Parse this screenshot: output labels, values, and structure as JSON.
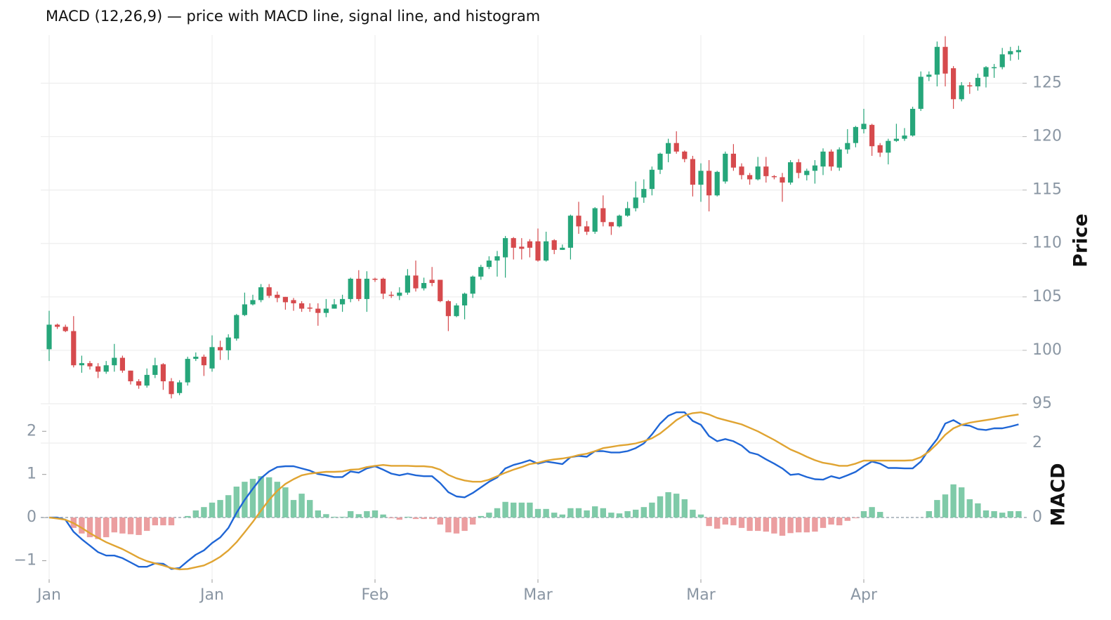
{
  "chart_data": [
    {
      "type": "candlestick",
      "title": "MACD (12,26,9) — price with MACD line, signal line, and histogram",
      "ylabel": "Price",
      "up_color": "#26a67a",
      "down_color": "#d64a4d",
      "grid": true,
      "ylim": [
        95,
        129.5
      ],
      "yticks": [
        95,
        100,
        105,
        110,
        115,
        120,
        125
      ],
      "open": [
        100.1,
        102.4,
        102.2,
        101.8,
        98.6,
        98.8,
        98.5,
        98.0,
        98.6,
        99.3,
        98.1,
        97.1,
        96.7,
        97.7,
        98.7,
        97.1,
        96.0,
        97.0,
        99.2,
        99.4,
        98.3,
        100.3,
        100.0,
        101.1,
        103.3,
        104.3,
        104.7,
        105.9,
        105.2,
        105.0,
        104.7,
        104.4,
        104.0,
        103.9,
        103.5,
        103.9,
        104.3,
        104.8,
        106.7,
        104.8,
        106.7,
        106.7,
        105.2,
        105.1,
        105.4,
        107.0,
        105.8,
        106.6,
        106.6,
        104.6,
        103.2,
        104.2,
        105.3,
        106.9,
        107.8,
        108.4,
        108.7,
        110.5,
        109.7,
        110.2,
        110.2,
        108.4,
        110.3,
        109.4,
        109.6,
        112.6,
        111.6,
        111.1,
        113.3,
        112.0,
        111.6,
        112.6,
        113.3,
        114.3,
        115.1,
        116.9,
        118.4,
        119.4,
        118.6,
        117.9,
        115.5,
        116.8,
        114.5,
        115.8,
        118.4,
        117.2,
        116.4,
        116.0,
        117.2,
        116.3,
        116.2,
        115.7,
        117.6,
        116.4,
        116.8,
        117.2,
        118.6,
        117.1,
        118.8,
        119.4,
        120.7,
        121.1,
        119.2,
        118.5,
        119.6,
        119.8,
        120.1,
        122.6,
        125.6,
        125.8,
        128.4,
        126.4,
        123.5,
        124.8,
        124.7,
        125.6,
        126.4,
        126.5,
        127.7,
        127.9
      ],
      "high": [
        103.7,
        102.5,
        102.4,
        103.2,
        99.5,
        99.0,
        98.8,
        99.0,
        100.6,
        99.5,
        98.1,
        97.3,
        98.3,
        99.3,
        98.8,
        97.4,
        97.2,
        99.4,
        99.8,
        99.6,
        101.4,
        100.9,
        101.5,
        103.4,
        105.4,
        105.2,
        106.2,
        106.2,
        105.5,
        105.0,
        104.9,
        104.6,
        104.4,
        104.4,
        104.8,
        104.8,
        105.2,
        106.8,
        107.5,
        107.4,
        106.8,
        106.8,
        105.5,
        105.9,
        107.6,
        108.4,
        106.8,
        107.8,
        106.6,
        104.7,
        104.4,
        105.4,
        107.0,
        108.0,
        108.8,
        109.3,
        110.7,
        110.6,
        110.5,
        110.4,
        111.4,
        111.1,
        110.4,
        109.9,
        112.7,
        113.9,
        112.1,
        113.4,
        114.5,
        112.0,
        112.7,
        113.9,
        115.8,
        116.0,
        117.2,
        118.5,
        119.8,
        120.5,
        118.7,
        118.2,
        117.5,
        117.8,
        116.8,
        118.6,
        119.3,
        117.5,
        116.6,
        118.1,
        118.1,
        116.4,
        116.6,
        117.8,
        117.9,
        117.0,
        117.8,
        118.9,
        118.8,
        119.0,
        120.7,
        121.0,
        122.6,
        121.2,
        119.4,
        119.8,
        121.2,
        120.8,
        122.8,
        126.1,
        126.1,
        128.9,
        129.4,
        126.6,
        125.1,
        125.1,
        125.9,
        126.6,
        126.8,
        128.3,
        128.4,
        128.5
      ],
      "low": [
        99.0,
        102.0,
        101.7,
        98.4,
        97.9,
        98.2,
        97.4,
        97.8,
        98.0,
        97.9,
        96.8,
        96.4,
        96.5,
        97.4,
        96.3,
        95.5,
        95.8,
        96.7,
        99.0,
        97.6,
        98.0,
        99.1,
        99.1,
        100.9,
        103.2,
        104.2,
        104.5,
        104.9,
        104.5,
        103.8,
        103.7,
        103.6,
        103.6,
        102.3,
        103.1,
        103.9,
        103.6,
        104.5,
        104.6,
        103.6,
        106.4,
        104.8,
        104.9,
        104.7,
        105.2,
        105.5,
        105.6,
        106.0,
        104.5,
        101.8,
        103.1,
        102.9,
        104.9,
        106.6,
        107.6,
        106.9,
        106.8,
        108.5,
        108.5,
        108.7,
        108.3,
        108.3,
        109.0,
        109.4,
        108.5,
        110.9,
        110.8,
        110.9,
        111.6,
        110.8,
        111.5,
        112.5,
        113.0,
        113.8,
        114.5,
        116.5,
        117.6,
        118.4,
        117.6,
        114.4,
        113.9,
        113.0,
        114.4,
        115.6,
        116.8,
        116.0,
        115.5,
        115.9,
        115.7,
        116.0,
        113.9,
        115.5,
        116.1,
        115.9,
        115.6,
        116.4,
        116.8,
        116.8,
        118.4,
        119.0,
        120.3,
        118.2,
        118.1,
        117.4,
        119.5,
        119.6,
        120.0,
        122.4,
        125.2,
        124.7,
        124.7,
        122.6,
        123.3,
        124.0,
        124.3,
        124.6,
        125.5,
        126.3,
        127.1,
        127.2
      ],
      "close": [
        102.4,
        102.2,
        101.8,
        98.6,
        98.8,
        98.5,
        98.0,
        98.6,
        99.3,
        98.1,
        97.1,
        96.7,
        97.7,
        98.6,
        97.1,
        95.9,
        97.0,
        99.2,
        99.4,
        98.6,
        100.3,
        100.0,
        101.2,
        103.3,
        104.3,
        104.7,
        105.9,
        105.1,
        104.9,
        104.5,
        104.4,
        103.9,
        103.9,
        103.5,
        103.9,
        104.3,
        104.8,
        106.7,
        104.8,
        106.7,
        106.6,
        105.3,
        105.1,
        105.4,
        107.0,
        105.8,
        106.3,
        106.3,
        104.6,
        103.2,
        104.2,
        105.3,
        106.9,
        107.8,
        108.4,
        108.8,
        110.5,
        109.6,
        109.5,
        109.6,
        108.4,
        110.2,
        109.4,
        109.6,
        112.6,
        111.6,
        111.1,
        113.3,
        112.0,
        111.6,
        112.6,
        113.3,
        114.3,
        115.1,
        116.9,
        118.4,
        119.4,
        118.6,
        117.9,
        115.5,
        116.8,
        114.5,
        116.7,
        118.4,
        117.1,
        116.4,
        116.0,
        117.2,
        116.3,
        116.2,
        115.7,
        117.6,
        116.6,
        116.8,
        117.3,
        118.6,
        117.2,
        118.8,
        119.4,
        120.9,
        121.2,
        119.1,
        118.5,
        119.6,
        119.8,
        120.1,
        122.6,
        125.6,
        125.8,
        128.4,
        125.9,
        123.5,
        124.8,
        124.7,
        125.5,
        126.5,
        126.5,
        127.7,
        128.0,
        128.1
      ]
    },
    {
      "type": "macd",
      "ylabel": "MACD",
      "grid": true,
      "categories": [
        "Jan",
        null,
        null,
        null,
        null,
        null,
        null,
        null,
        null,
        null,
        null,
        null,
        null,
        null,
        null,
        null,
        null,
        null,
        null,
        null,
        "Jan",
        null,
        null,
        null,
        null,
        null,
        null,
        null,
        null,
        null,
        null,
        null,
        null,
        null,
        null,
        null,
        null,
        null,
        null,
        null,
        "Feb",
        null,
        null,
        null,
        null,
        null,
        null,
        null,
        null,
        null,
        null,
        null,
        null,
        null,
        null,
        null,
        null,
        null,
        null,
        null,
        "Mar",
        null,
        null,
        null,
        null,
        null,
        null,
        null,
        null,
        null,
        null,
        null,
        null,
        null,
        null,
        null,
        null,
        null,
        null,
        null,
        "Mar",
        null,
        null,
        null,
        null,
        null,
        null,
        null,
        null,
        null,
        null,
        null,
        null,
        null,
        null,
        null,
        null,
        null,
        null,
        null,
        "Apr",
        null,
        null,
        null,
        null,
        null,
        null,
        null,
        null,
        null,
        null,
        null,
        null,
        null,
        null,
        null,
        null,
        null,
        null,
        null
      ],
      "ylim": [
        -1.43,
        2.59
      ],
      "yticks": [
        {
          "value": -1,
          "label": "−1"
        },
        0,
        1,
        2
      ],
      "y2lim": [
        -1.66,
        3.0
      ],
      "y2ticks": [
        0,
        2
      ],
      "series": [
        {
          "type": "bar",
          "axis": "y2",
          "color": "#7fcaa8",
          "negative_color": "#eb9ea0",
          "values": [
            0,
            0,
            0,
            -0.28,
            -0.43,
            -0.53,
            -0.58,
            -0.53,
            -0.4,
            -0.43,
            -0.45,
            -0.47,
            -0.36,
            -0.21,
            -0.21,
            -0.21,
            0,
            0.04,
            0.19,
            0.28,
            0.4,
            0.47,
            0.6,
            0.83,
            0.96,
            1.04,
            1.11,
            1.08,
            0.96,
            0.81,
            0.47,
            0.64,
            0.47,
            0.19,
            0.09,
            0.02,
            0.02,
            0.17,
            0.09,
            0.17,
            0.19,
            0.08,
            -0.02,
            -0.06,
            0.02,
            -0.04,
            -0.04,
            -0.04,
            -0.19,
            -0.4,
            -0.43,
            -0.36,
            -0.19,
            0.04,
            0.13,
            0.25,
            0.42,
            0.4,
            0.4,
            0.4,
            0.23,
            0.23,
            0.13,
            0.08,
            0.25,
            0.25,
            0.19,
            0.3,
            0.25,
            0.13,
            0.11,
            0.17,
            0.21,
            0.28,
            0.4,
            0.57,
            0.68,
            0.64,
            0.49,
            0.21,
            0.08,
            -0.23,
            -0.3,
            -0.19,
            -0.21,
            -0.28,
            -0.36,
            -0.36,
            -0.38,
            -0.43,
            -0.49,
            -0.42,
            -0.4,
            -0.4,
            -0.38,
            -0.28,
            -0.19,
            -0.21,
            -0.09,
            -0.02,
            0.17,
            0.28,
            0.15,
            0,
            0,
            0,
            0,
            0,
            0.17,
            0.47,
            0.62,
            0.89,
            0.81,
            0.49,
            0.38,
            0.19,
            0.17,
            0.13,
            0.17,
            0.17
          ]
        },
        {
          "type": "line",
          "color": "#1f66d6",
          "values": [
            0,
            0,
            -0.05,
            -0.33,
            -0.5,
            -0.65,
            -0.8,
            -0.88,
            -0.88,
            -0.94,
            -1.04,
            -1.14,
            -1.14,
            -1.06,
            -1.07,
            -1.19,
            -1.17,
            -1.01,
            -0.86,
            -0.76,
            -0.59,
            -0.46,
            -0.24,
            0.11,
            0.41,
            0.67,
            0.91,
            1.07,
            1.17,
            1.19,
            1.19,
            1.14,
            1.09,
            1.01,
            0.98,
            0.94,
            0.94,
            1.07,
            1.04,
            1.14,
            1.19,
            1.11,
            1.02,
            0.98,
            1.02,
            0.98,
            0.96,
            0.96,
            0.8,
            0.59,
            0.49,
            0.47,
            0.57,
            0.7,
            0.83,
            0.93,
            1.14,
            1.22,
            1.27,
            1.33,
            1.25,
            1.3,
            1.27,
            1.24,
            1.4,
            1.43,
            1.41,
            1.54,
            1.54,
            1.51,
            1.51,
            1.54,
            1.61,
            1.72,
            1.93,
            2.18,
            2.36,
            2.44,
            2.44,
            2.24,
            2.15,
            1.89,
            1.77,
            1.82,
            1.77,
            1.67,
            1.51,
            1.46,
            1.35,
            1.25,
            1.14,
            0.99,
            1.01,
            0.94,
            0.89,
            0.88,
            0.96,
            0.91,
            0.98,
            1.06,
            1.19,
            1.3,
            1.25,
            1.15,
            1.15,
            1.14,
            1.14,
            1.3,
            1.58,
            1.82,
            2.18,
            2.26,
            2.15,
            2.13,
            2.05,
            2.03,
            2.07,
            2.07,
            2.11,
            2.16
          ]
        },
        {
          "type": "line",
          "color": "#e0a432",
          "values": [
            0,
            -0.02,
            -0.05,
            -0.13,
            -0.24,
            -0.36,
            -0.47,
            -0.57,
            -0.65,
            -0.73,
            -0.83,
            -0.93,
            -1.01,
            -1.06,
            -1.11,
            -1.17,
            -1.2,
            -1.19,
            -1.15,
            -1.11,
            -1.02,
            -0.91,
            -0.76,
            -0.57,
            -0.34,
            -0.1,
            0.16,
            0.41,
            0.62,
            0.78,
            0.89,
            0.98,
            1.02,
            1.04,
            1.06,
            1.06,
            1.07,
            1.11,
            1.12,
            1.17,
            1.2,
            1.22,
            1.2,
            1.2,
            1.2,
            1.19,
            1.19,
            1.17,
            1.11,
            0.99,
            0.91,
            0.86,
            0.83,
            0.83,
            0.88,
            0.96,
            1.04,
            1.11,
            1.17,
            1.24,
            1.27,
            1.32,
            1.35,
            1.37,
            1.4,
            1.45,
            1.48,
            1.54,
            1.61,
            1.64,
            1.67,
            1.69,
            1.72,
            1.77,
            1.84,
            1.95,
            2.1,
            2.26,
            2.37,
            2.42,
            2.44,
            2.39,
            2.31,
            2.26,
            2.21,
            2.16,
            2.08,
            2.0,
            1.9,
            1.8,
            1.69,
            1.58,
            1.5,
            1.41,
            1.33,
            1.27,
            1.24,
            1.2,
            1.2,
            1.25,
            1.32,
            1.32,
            1.32,
            1.32,
            1.32,
            1.32,
            1.33,
            1.4,
            1.53,
            1.71,
            1.92,
            2.07,
            2.15,
            2.2,
            2.23,
            2.26,
            2.29,
            2.33,
            2.36,
            2.39
          ]
        }
      ]
    }
  ]
}
